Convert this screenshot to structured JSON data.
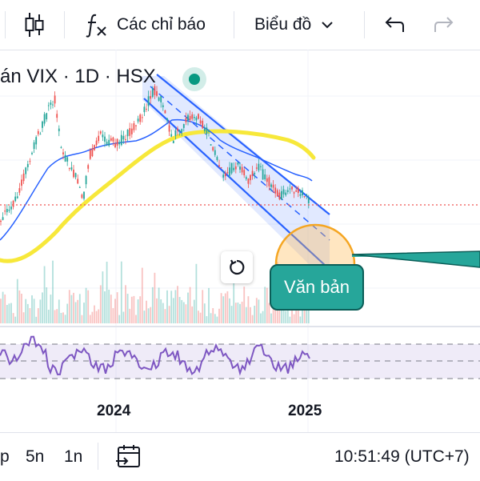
{
  "toolbar": {
    "indicators_label": "Các chỉ báo",
    "chart_type_label": "Biểu đồ",
    "icons": [
      "candlestick-icon",
      "function-fx-icon",
      "chevron-down-icon",
      "undo-icon",
      "redo-icon"
    ]
  },
  "chart": {
    "title": "án VIX · 1D · HSX",
    "text_note": "Văn bản",
    "x_labels": [
      "2024",
      "2025"
    ],
    "colors": {
      "up": "#26a69a",
      "down": "#ef5350",
      "ma_long": "#f7e83a",
      "ma_short": "#2962ff",
      "channel": "#2962ff",
      "rsi": "#7e57c2",
      "live": "#089981",
      "price_line": "#ef5350"
    }
  },
  "bottom": {
    "timeframes": [
      "p",
      "5n",
      "1n"
    ],
    "clock": "10:51:49 (UTC+7)"
  }
}
